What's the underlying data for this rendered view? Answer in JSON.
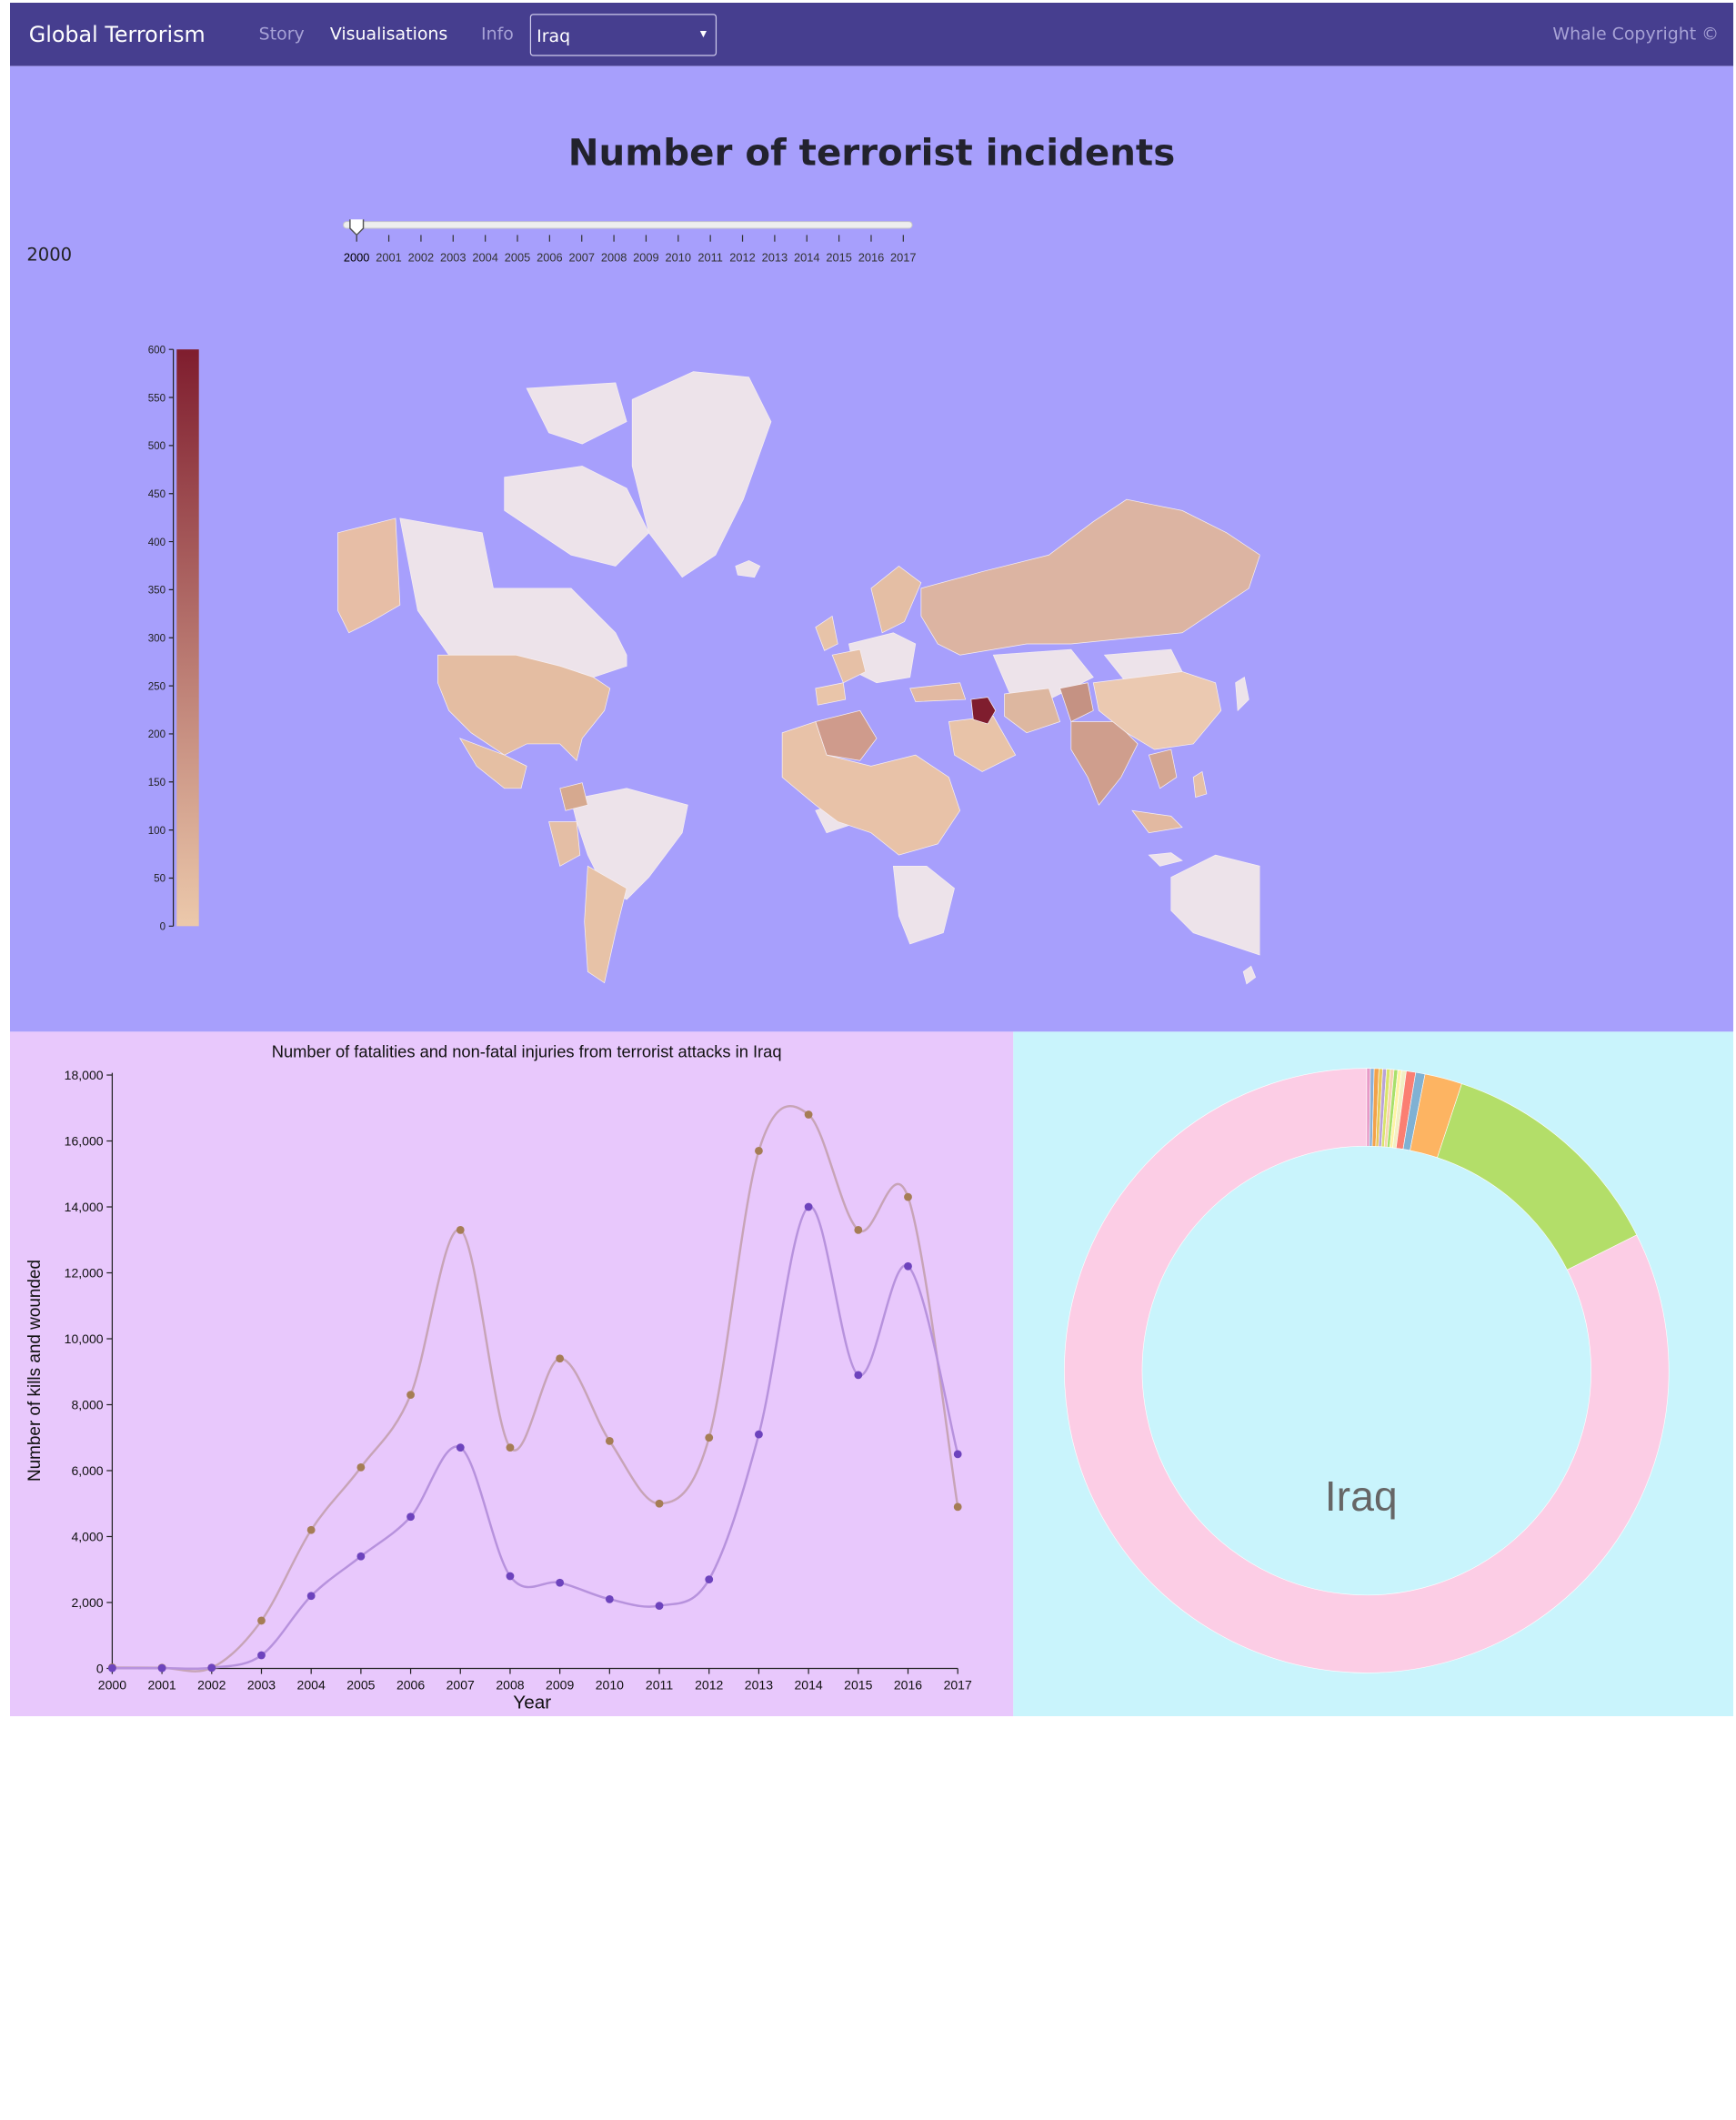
{
  "navbar": {
    "brand": "Global Terrorism",
    "links": [
      "Story",
      "Visualisations",
      "Info"
    ],
    "country_select": "Iraq",
    "copyright": "Whale Copyright ©"
  },
  "colors": {
    "navbar_bg": "#463e8f",
    "map_panel_bg": "#a79ffc",
    "line_panel_bg": "#e8c8fc",
    "donut_panel_bg": "#c9f4fc",
    "scale_low": "#ecc9ab",
    "scale_high": "#7f1d2e",
    "no_data_country": "#ede3ea",
    "fatalities_line": "#c7a4b6",
    "injuries_line": "#b792dd",
    "fatalities_point": "#a57d55",
    "injuries_point": "#6d43bd"
  },
  "map": {
    "title": "Number of terrorist incidents",
    "selected_year": "2000",
    "slider_years": [
      "2000",
      "2001",
      "2002",
      "2003",
      "2004",
      "2005",
      "2006",
      "2007",
      "2008",
      "2009",
      "2010",
      "2011",
      "2012",
      "2013",
      "2014",
      "2015",
      "2016",
      "2017"
    ],
    "legend_ticks": [
      "600",
      "550",
      "500",
      "450",
      "400",
      "350",
      "300",
      "250",
      "200",
      "150",
      "100",
      "50",
      "0"
    ],
    "legend_domain": [
      0,
      600
    ],
    "highlighted_country": "Iraq"
  },
  "chart_data": [
    {
      "type": "line",
      "title": "Number of fatalities and non-fatal injuries from terrorist attacks in Iraq",
      "xlabel": "Year",
      "ylabel": "Number of kills and wounded",
      "ylim": [
        0,
        18000
      ],
      "y_ticks": [
        "0",
        "2,000",
        "4,000",
        "6,000",
        "8,000",
        "10,000",
        "12,000",
        "14,000",
        "16,000",
        "18,000"
      ],
      "x": [
        "2000",
        "2001",
        "2002",
        "2003",
        "2004",
        "2005",
        "2006",
        "2007",
        "2008",
        "2009",
        "2010",
        "2011",
        "2012",
        "2013",
        "2014",
        "2015",
        "2016",
        "2017"
      ],
      "series": [
        {
          "values": [
            30,
            20,
            20,
            1450,
            4200,
            6100,
            8300,
            13300,
            6700,
            9400,
            6900,
            5000,
            7000,
            15700,
            16800,
            13300,
            14300,
            4900
          ]
        },
        {
          "values": [
            10,
            10,
            20,
            400,
            2200,
            3400,
            4600,
            6700,
            2800,
            2600,
            2100,
            1900,
            2700,
            7100,
            14000,
            8900,
            12200,
            6500
          ]
        }
      ],
      "grid": false
    },
    {
      "type": "pie",
      "center_label": "Iraq",
      "slices": [
        {
          "value": 0.2,
          "color": "#e89ac7"
        },
        {
          "value": 0.2,
          "color": "#8ab0d8"
        },
        {
          "value": 0.25,
          "color": "#f3a24a"
        },
        {
          "value": 0.2,
          "color": "#e8c95a"
        },
        {
          "value": 0.2,
          "color": "#b8a2d8"
        },
        {
          "value": 0.2,
          "color": "#d9e46b"
        },
        {
          "value": 0.2,
          "color": "#f7d4b0"
        },
        {
          "value": 0.2,
          "color": "#a8e06b"
        },
        {
          "value": 0.2,
          "color": "#fff3a6"
        },
        {
          "value": 0.25,
          "color": "#f2f0c4"
        },
        {
          "value": 0.5,
          "color": "#fb7f72"
        },
        {
          "value": 0.5,
          "color": "#80b1d3"
        },
        {
          "value": 2.0,
          "color": "#fdb462"
        },
        {
          "value": 12.5,
          "color": "#b3de69"
        },
        {
          "value": 82.45,
          "color": "#fccde5"
        }
      ]
    }
  ]
}
